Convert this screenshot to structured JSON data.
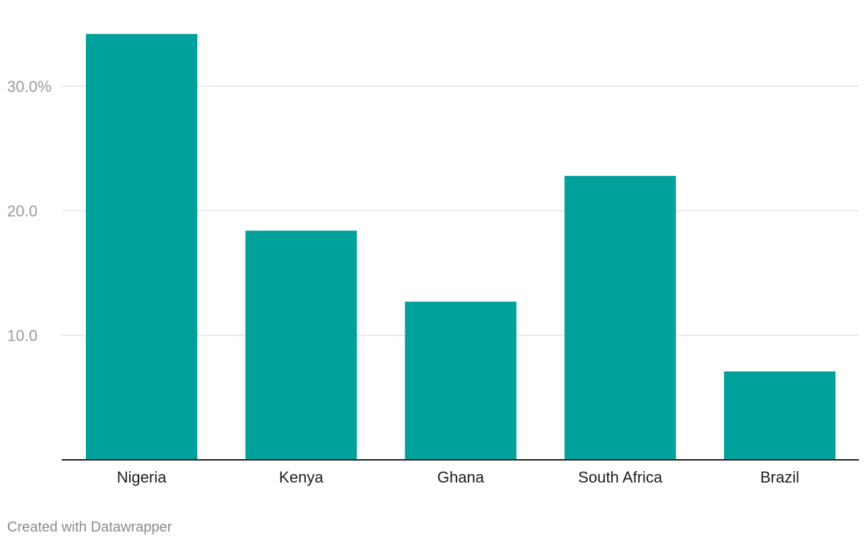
{
  "chart_data": {
    "type": "bar",
    "categories": [
      "Nigeria",
      "Kenya",
      "Ghana",
      "South Africa",
      "Brazil"
    ],
    "values": [
      34.2,
      18.4,
      12.7,
      22.8,
      7.1
    ],
    "ylim": [
      0,
      34.2
    ],
    "yticks": [
      10,
      20,
      30
    ],
    "ytick_labels": [
      "10.0",
      "20.0",
      "30.0%"
    ],
    "grid": true,
    "bar_color": "#00a19a"
  },
  "footer": {
    "credit": "Created with Datawrapper"
  }
}
